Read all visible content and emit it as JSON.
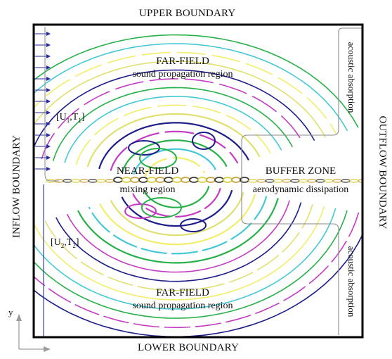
{
  "boundaries": {
    "upper": "UPPER BOUNDARY",
    "lower": "LOWER BOUNDARY",
    "inflow": "INFLOW BOUNDARY",
    "outflow": "OUTFLOW BOUNDARY"
  },
  "regions": {
    "far_field_upper": {
      "title": "FAR-FIELD",
      "subtitle": "sound propagation region"
    },
    "far_field_lower": {
      "title": "FAR-FIELD",
      "subtitle": "sound propagation region"
    },
    "near_field": {
      "title": "NEAR-FIELD",
      "subtitle": "mixing region"
    },
    "buffer_zone": {
      "title": "BUFFER ZONE",
      "subtitle": "aerodynamic dissipation"
    },
    "acoustic_upper": "acoustic absorption",
    "acoustic_lower": "acoustic absorption"
  },
  "inflow_conditions": {
    "upper": {
      "u": "U",
      "u_sub": "1",
      "t": "T",
      "t_sub": "1"
    },
    "lower": {
      "u": "U",
      "u_sub": "2",
      "t": "T",
      "t_sub": "2"
    }
  },
  "axes": {
    "y": "y"
  },
  "colors": {
    "frame": "#000000",
    "inflow_arrows": "#2a2aa8",
    "contour_palette": [
      "#f2ee6a",
      "#45c8d6",
      "#28b04a",
      "#c43cc4",
      "#1d1d8a",
      "#e0e070"
    ],
    "mixing_layer": [
      "#c9a23c",
      "#3a3a3a",
      "#d8d040"
    ],
    "buffer_outline": "#888888"
  }
}
